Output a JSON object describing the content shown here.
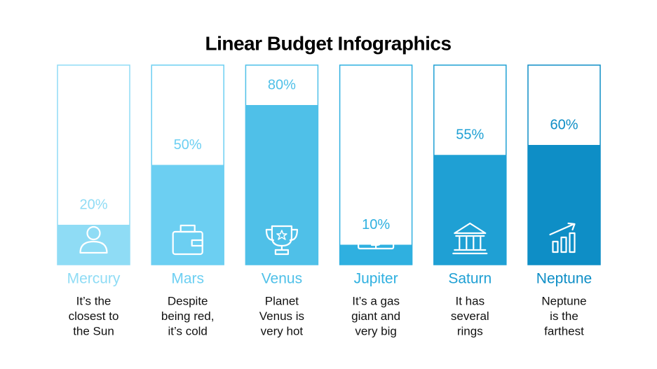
{
  "chart_data": {
    "type": "bar",
    "title": "Linear Budget Infographics",
    "categories": [
      "Mercury",
      "Mars",
      "Venus",
      "Jupiter",
      "Saturn",
      "Neptune"
    ],
    "values": [
      20,
      50,
      80,
      10,
      55,
      60
    ],
    "value_labels": [
      "20%",
      "50%",
      "80%",
      "10%",
      "55%",
      "60%"
    ],
    "colors": [
      "#8fdcf5",
      "#6ccff2",
      "#4fc0e8",
      "#2fb0e0",
      "#1fa0d4",
      "#0e8ec6"
    ],
    "descriptions": [
      [
        "It’s the",
        "closest to",
        "the Sun"
      ],
      [
        "Despite",
        "being red,",
        "it’s cold"
      ],
      [
        "Planet",
        "Venus is",
        "very hot"
      ],
      [
        "It’s a gas",
        "giant and",
        "very big"
      ],
      [
        "It has",
        "several",
        "rings"
      ],
      [
        "Neptune",
        "is the",
        "farthest"
      ]
    ],
    "ylim": [
      0,
      100
    ]
  }
}
